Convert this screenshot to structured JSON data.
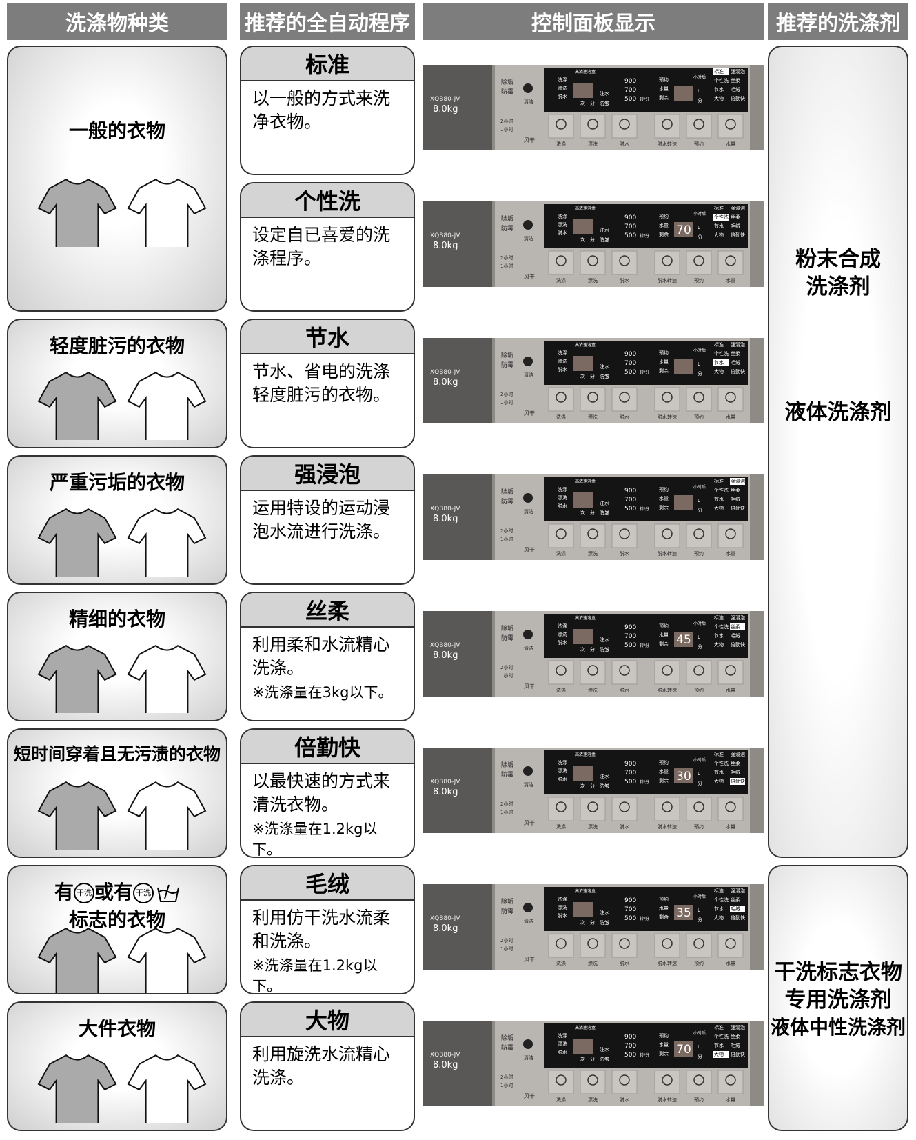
{
  "headers": [
    "洗涤物种类",
    "推荐的全自动程序",
    "控制面板显示",
    "推荐的洗涤剂"
  ],
  "fabrics": [
    {
      "label": "一般的衣物"
    },
    {
      "label": "轻度脏污的衣物"
    },
    {
      "label": "严重污垢的衣物"
    },
    {
      "label": "精细的衣物"
    },
    {
      "label": "短时间穿着且无污渍的衣物"
    },
    {
      "label_parts": [
        "有",
        "或有"
      ],
      "icon_text": "干洗",
      "label2": "标志的衣物"
    },
    {
      "label": "大件衣物"
    }
  ],
  "programs": [
    {
      "name": "标准",
      "desc": "以一般的方式来洗净衣物。"
    },
    {
      "name": "个性洗",
      "desc": "设定自已喜爱的洗涤程序。"
    },
    {
      "name": "节水",
      "desc": "节水、省电的洗涤轻度脏污的衣物。"
    },
    {
      "name": "强浸泡",
      "desc": "运用特设的运动浸泡水流进行洗涤。"
    },
    {
      "name": "丝柔",
      "desc": "利用柔和水流精心洗涤。",
      "note": "※洗涤量在3kg以下。"
    },
    {
      "name": "倍勤快",
      "desc": "以最快速的方式来清洗衣物。",
      "note": "※洗涤量在1.2kg以下。"
    },
    {
      "name": "毛绒",
      "desc": "利用仿干洗水流柔和洗涤。",
      "note": "※洗涤量在1.2kg以下。"
    },
    {
      "name": "大物",
      "desc": "利用旋洗水流精心洗涤。"
    }
  ],
  "panel": {
    "model": "XQB80-JV",
    "capacity": "8.0kg",
    "left_top": [
      "除垢",
      "防霉"
    ],
    "clean": "清洁",
    "left_bottom": [
      "2小时",
      "1小时"
    ],
    "dry": "风干",
    "dispenser": "高浓速溶盒",
    "steps": [
      "洗涤",
      "漂洗",
      "脱水"
    ],
    "time_units": [
      "次",
      "分"
    ],
    "anti": "防皱",
    "fill": "注水",
    "speeds": [
      "900",
      "700",
      "500"
    ],
    "speed_unit": "转/分",
    "reserve": [
      "预约",
      "水量",
      "剩余"
    ],
    "liter": "L",
    "minute": "分",
    "hours_after": "小时后",
    "programs": [
      "标准",
      "强浸泡",
      "个性洗",
      "丝柔",
      "节水",
      "毛绒",
      "大物",
      "倍勤快"
    ],
    "buttons": [
      "洗涤",
      "漂洗",
      "脱水",
      "脱水转速",
      "预约",
      "水量"
    ]
  },
  "panels": [
    {
      "program": "标准"
    },
    {
      "program": "个性洗",
      "display": "70"
    },
    {
      "program": "节水"
    },
    {
      "program": "强浸泡"
    },
    {
      "program": "丝柔",
      "display": "45"
    },
    {
      "program": "倍勤快",
      "display": "30"
    },
    {
      "program": "毛绒",
      "display": "35"
    },
    {
      "program": "大物",
      "display": "70"
    }
  ],
  "detergents": [
    {
      "texts": [
        "粉末合成",
        "洗涤剂"
      ],
      "texts2": [
        "液体洗涤剂"
      ]
    },
    {
      "texts": [
        "干洗标志衣物",
        "专用洗涤剂",
        "液体中性洗涤剂"
      ]
    }
  ]
}
